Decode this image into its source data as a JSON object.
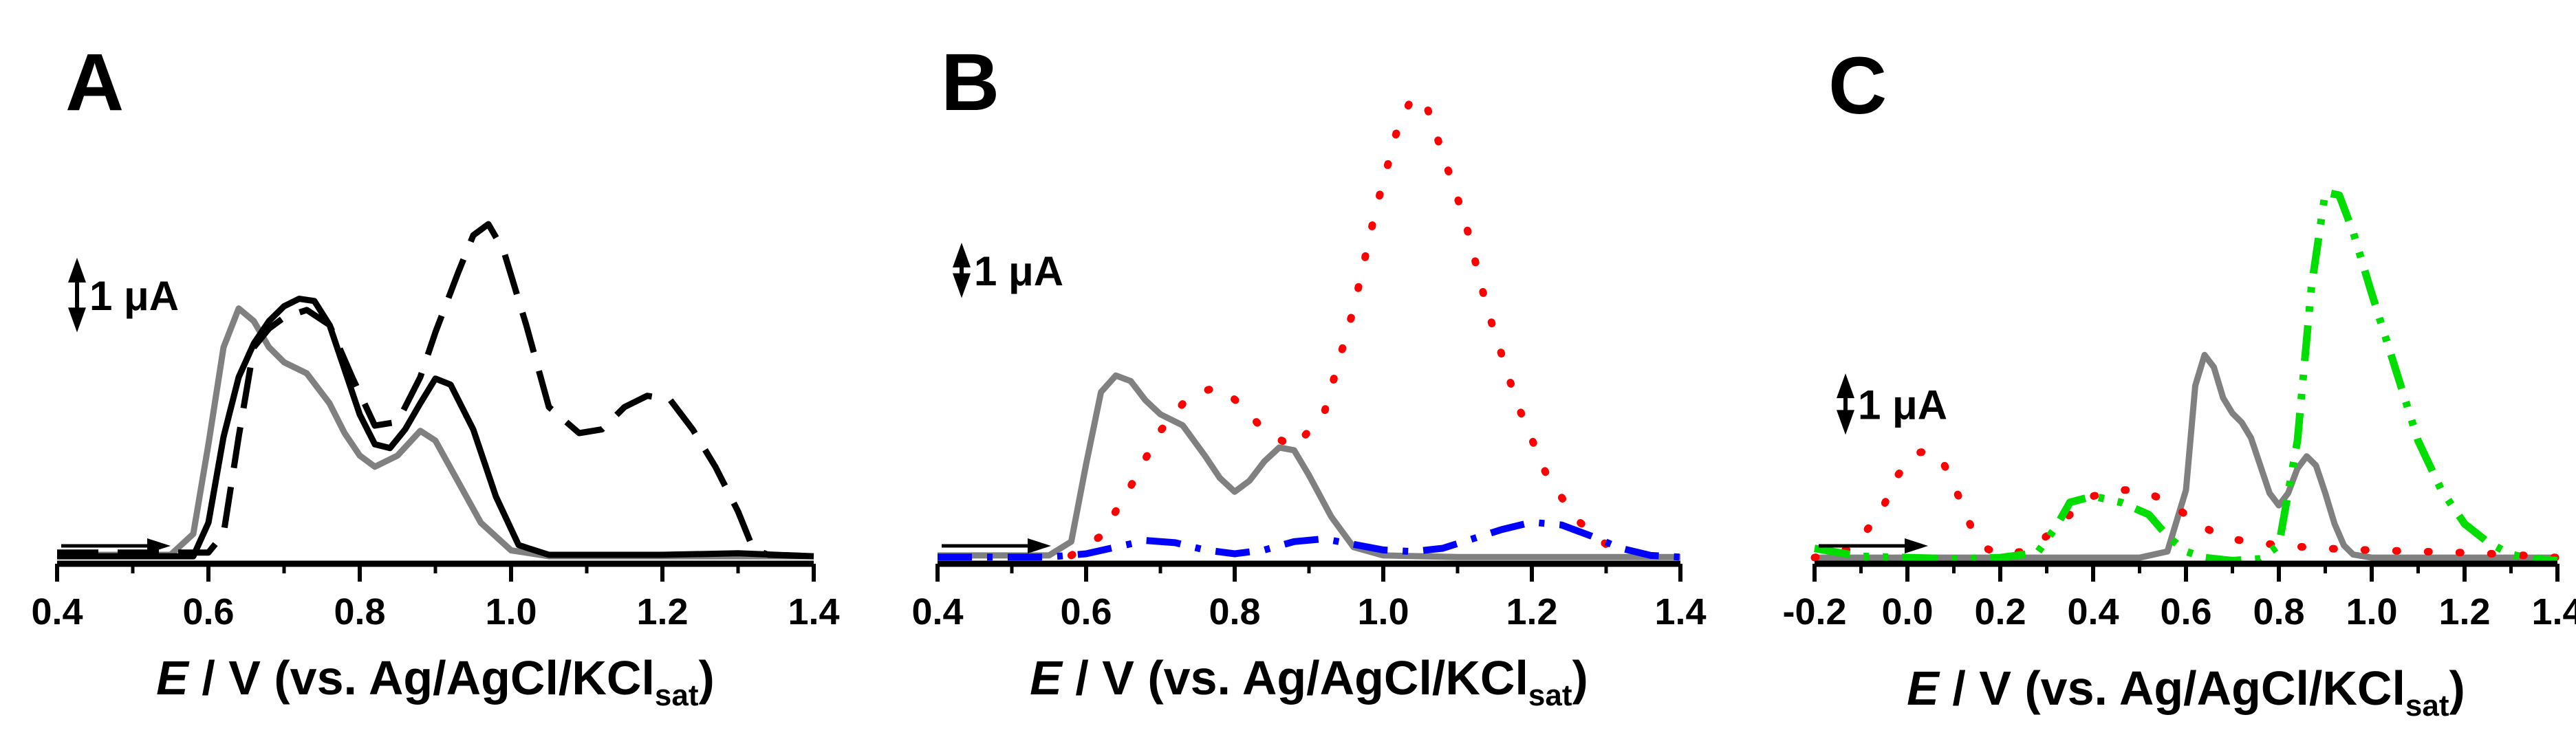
{
  "chart_data": [
    {
      "panel": "A",
      "type": "line",
      "xlabel": "E / V (vs. Ag/AgCl/KCl_sat)",
      "xlabel_parts": {
        "italic": "E",
        "main": " / V (vs. Ag/AgCl/KCl",
        "sub": "sat",
        "close": ")"
      },
      "xlim": [
        0.4,
        1.4
      ],
      "ylim": [
        0,
        7
      ],
      "xticks": [
        0.4,
        0.6,
        0.8,
        1.0,
        1.2,
        1.4
      ],
      "xtick_labels": [
        "0.4",
        "0.6",
        "0.8",
        "1.0",
        "1.2",
        "1.4"
      ],
      "scale_bar_label": "1 μA",
      "scale_bar_value": 1,
      "scale_bar_from": 3.1,
      "series": [
        {
          "name": "gray-solid",
          "color": "#808080",
          "style": "solid",
          "x": [
            0.4,
            0.55,
            0.58,
            0.6,
            0.62,
            0.64,
            0.66,
            0.68,
            0.7,
            0.73,
            0.76,
            0.78,
            0.8,
            0.82,
            0.85,
            0.88,
            0.9,
            0.93,
            0.96,
            1.0,
            1.05,
            1.2,
            1.4
          ],
          "y": [
            0.12,
            0.12,
            0.4,
            1.6,
            2.9,
            3.42,
            3.25,
            2.9,
            2.7,
            2.55,
            2.15,
            1.75,
            1.45,
            1.3,
            1.45,
            1.78,
            1.65,
            1.1,
            0.55,
            0.18,
            0.1,
            0.1,
            0.1
          ]
        },
        {
          "name": "black-solid",
          "color": "#000000",
          "style": "solid",
          "x": [
            0.4,
            0.58,
            0.6,
            0.62,
            0.64,
            0.66,
            0.68,
            0.7,
            0.72,
            0.74,
            0.76,
            0.78,
            0.8,
            0.82,
            0.84,
            0.86,
            0.88,
            0.9,
            0.92,
            0.95,
            0.98,
            1.01,
            1.05,
            1.2,
            1.3,
            1.4
          ],
          "y": [
            0.1,
            0.1,
            0.55,
            1.7,
            2.5,
            2.95,
            3.25,
            3.45,
            3.55,
            3.52,
            3.2,
            2.6,
            2.0,
            1.6,
            1.55,
            1.8,
            2.15,
            2.48,
            2.4,
            1.8,
            0.9,
            0.25,
            0.12,
            0.12,
            0.14,
            0.1
          ]
        },
        {
          "name": "black-dash",
          "color": "#000000",
          "style": "dash",
          "x": [
            0.4,
            0.6,
            0.62,
            0.64,
            0.66,
            0.68,
            0.7,
            0.73,
            0.76,
            0.79,
            0.82,
            0.85,
            0.88,
            0.9,
            0.93,
            0.95,
            0.97,
            0.99,
            1.02,
            1.05,
            1.09,
            1.12,
            1.15,
            1.18,
            1.21,
            1.24,
            1.27,
            1.3,
            1.32,
            1.34,
            1.4
          ],
          "y": [
            0.15,
            0.15,
            0.4,
            1.7,
            2.9,
            3.15,
            3.3,
            3.4,
            3.2,
            2.5,
            1.85,
            1.9,
            2.5,
            3.1,
            3.9,
            4.4,
            4.55,
            4.2,
            3.2,
            2.1,
            1.75,
            1.8,
            2.1,
            2.25,
            2.2,
            1.8,
            1.3,
            0.7,
            0.2,
            0.12,
            0.1
          ]
        }
      ]
    },
    {
      "panel": "B",
      "type": "line",
      "xlabel": "E / V (vs. Ag/AgCl/KCl_sat)",
      "xlabel_parts": {
        "italic": "E",
        "main": " / V (vs. Ag/AgCl/KCl",
        "sub": "sat",
        "close": ")"
      },
      "xlim": [
        0.4,
        1.4
      ],
      "ylim": [
        0,
        9.5
      ],
      "xticks": [
        0.4,
        0.6,
        0.8,
        1.0,
        1.2,
        1.4
      ],
      "xtick_labels": [
        "0.4",
        "0.6",
        "0.8",
        "1.0",
        "1.2",
        "1.4"
      ],
      "scale_bar_label": "1 μA",
      "scale_bar_value": 1,
      "scale_bar_from": 4.8,
      "series": [
        {
          "name": "gray-solid",
          "color": "#808080",
          "style": "solid",
          "x": [
            0.4,
            0.55,
            0.58,
            0.6,
            0.62,
            0.64,
            0.66,
            0.68,
            0.7,
            0.73,
            0.76,
            0.78,
            0.8,
            0.82,
            0.84,
            0.86,
            0.88,
            0.9,
            0.93,
            0.96,
            1.0,
            1.1,
            1.4
          ],
          "y": [
            0.15,
            0.15,
            0.4,
            1.8,
            3.1,
            3.4,
            3.3,
            2.95,
            2.7,
            2.5,
            1.95,
            1.55,
            1.3,
            1.5,
            1.85,
            2.1,
            2.05,
            1.6,
            0.85,
            0.3,
            0.15,
            0.12,
            0.12
          ]
        },
        {
          "name": "red-dot",
          "color": "#ff0000",
          "style": "dot",
          "x": [
            0.58,
            0.62,
            0.66,
            0.7,
            0.74,
            0.78,
            0.81,
            0.84,
            0.88,
            0.92,
            0.96,
            0.99,
            1.02,
            1.04,
            1.06,
            1.08,
            1.11,
            1.14,
            1.18,
            1.22,
            1.26,
            1.3,
            1.33
          ],
          "y": [
            0.15,
            0.5,
            1.4,
            2.4,
            3.05,
            3.2,
            2.85,
            2.4,
            2.1,
            2.7,
            4.6,
            6.4,
            7.9,
            8.45,
            8.2,
            7.4,
            6.2,
            4.6,
            2.9,
            1.6,
            0.8,
            0.35,
            0.2
          ]
        },
        {
          "name": "blue-dashdot",
          "color": "#0000ff",
          "style": "dashdot",
          "x": [
            0.4,
            0.55,
            0.6,
            0.64,
            0.68,
            0.72,
            0.76,
            0.8,
            0.84,
            0.88,
            0.92,
            0.96,
            1.0,
            1.04,
            1.08,
            1.12,
            1.16,
            1.2,
            1.24,
            1.28,
            1.32,
            1.36,
            1.4
          ],
          "y": [
            0.12,
            0.12,
            0.18,
            0.3,
            0.42,
            0.38,
            0.25,
            0.18,
            0.25,
            0.4,
            0.45,
            0.35,
            0.25,
            0.22,
            0.28,
            0.45,
            0.62,
            0.75,
            0.7,
            0.5,
            0.28,
            0.15,
            0.12
          ]
        }
      ]
    },
    {
      "panel": "C",
      "type": "line",
      "xlabel": "E / V (vs. Ag/AgCl/KCl_sat)",
      "xlabel_parts": {
        "italic": "E",
        "main": " / V (vs. Ag/AgCl/KCl",
        "sub": "sat",
        "close": ")"
      },
      "xlim": [
        -0.2,
        1.4
      ],
      "ylim": [
        0,
        7.5
      ],
      "xticks": [
        -0.2,
        0.0,
        0.2,
        0.4,
        0.6,
        0.8,
        1.0,
        1.2,
        1.4
      ],
      "xtick_labels": [
        "-0.2",
        "0.0",
        "0.2",
        "0.4",
        "0.6",
        "0.8",
        "1.0",
        "1.2",
        "1.4"
      ],
      "scale_bar_label": "1 μA",
      "scale_bar_value": 1,
      "scale_bar_from": 2.1,
      "series": [
        {
          "name": "gray-solid",
          "color": "#808080",
          "style": "solid",
          "x": [
            -0.2,
            0.5,
            0.56,
            0.6,
            0.62,
            0.64,
            0.66,
            0.68,
            0.7,
            0.72,
            0.74,
            0.76,
            0.78,
            0.8,
            0.82,
            0.84,
            0.86,
            0.88,
            0.9,
            0.92,
            0.94,
            0.96,
            1.0,
            1.4
          ],
          "y": [
            0.1,
            0.1,
            0.2,
            1.2,
            2.9,
            3.4,
            3.2,
            2.7,
            2.45,
            2.3,
            2.05,
            1.6,
            1.15,
            0.95,
            1.15,
            1.55,
            1.75,
            1.6,
            1.15,
            0.65,
            0.3,
            0.15,
            0.1,
            0.1
          ]
        },
        {
          "name": "red-dot",
          "color": "#ff0000",
          "style": "dot",
          "x": [
            -0.2,
            -0.12,
            -0.06,
            -0.02,
            0.02,
            0.05,
            0.08,
            0.11,
            0.14,
            0.17,
            0.2,
            0.25,
            0.3,
            0.35,
            0.4,
            0.45,
            0.5,
            0.55,
            0.6,
            0.65,
            0.7,
            0.8,
            0.9,
            1.0,
            1.1,
            1.2,
            1.3,
            1.4
          ],
          "y": [
            0.1,
            0.25,
            0.8,
            1.45,
            1.8,
            1.85,
            1.6,
            1.1,
            0.55,
            0.25,
            0.15,
            0.2,
            0.45,
            0.8,
            1.1,
            1.2,
            1.2,
            1.05,
            0.8,
            0.55,
            0.4,
            0.3,
            0.25,
            0.22,
            0.2,
            0.18,
            0.15,
            0.1
          ]
        },
        {
          "name": "green-dashdotdot",
          "color": "#00dd00",
          "style": "dashdotdot",
          "x": [
            -0.2,
            -0.1,
            0.0,
            0.1,
            0.2,
            0.28,
            0.32,
            0.35,
            0.4,
            0.46,
            0.52,
            0.56,
            0.6,
            0.64,
            0.7,
            0.76,
            0.8,
            0.84,
            0.87,
            0.9,
            0.93,
            0.96,
            1.0,
            1.05,
            1.1,
            1.15,
            1.2,
            1.25,
            1.3,
            1.35,
            1.4
          ],
          "y": [
            0.25,
            0.12,
            0.1,
            0.08,
            0.1,
            0.18,
            0.6,
            1.0,
            1.1,
            1.0,
            0.8,
            0.45,
            0.2,
            0.1,
            0.05,
            0.08,
            0.3,
            2.0,
            4.5,
            6.05,
            6.0,
            5.4,
            4.4,
            3.2,
            2.0,
            1.2,
            0.65,
            0.35,
            0.15,
            0.08,
            0.05
          ]
        }
      ]
    }
  ]
}
